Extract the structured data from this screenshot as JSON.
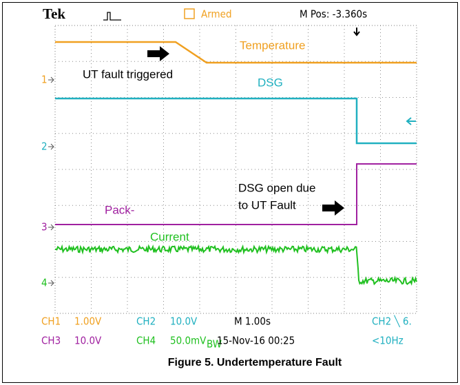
{
  "header": {
    "brand": "Tek",
    "status": "Armed",
    "position": "M Pos: -3.360s"
  },
  "traces": [
    {
      "label": "Temperature",
      "marker": "1"
    },
    {
      "label": "DSG",
      "marker": "2"
    },
    {
      "label": "Pack-",
      "marker": "3"
    },
    {
      "label": "Current",
      "marker": "4"
    }
  ],
  "annotations": [
    "UT fault triggered",
    "DSG open due",
    "to UT Fault"
  ],
  "status_rows": [
    [
      "CH1",
      "1.00V",
      "CH2",
      "10.0V",
      "M 1.00s",
      "CH2 ╲ 6."
    ],
    [
      "CH3",
      "10.0V",
      "CH4",
      "50.0mV",
      "BW",
      "15-Nov-16 00:25",
      "<10Hz"
    ]
  ],
  "caption": "Figure 5. Undertemperature Fault"
}
